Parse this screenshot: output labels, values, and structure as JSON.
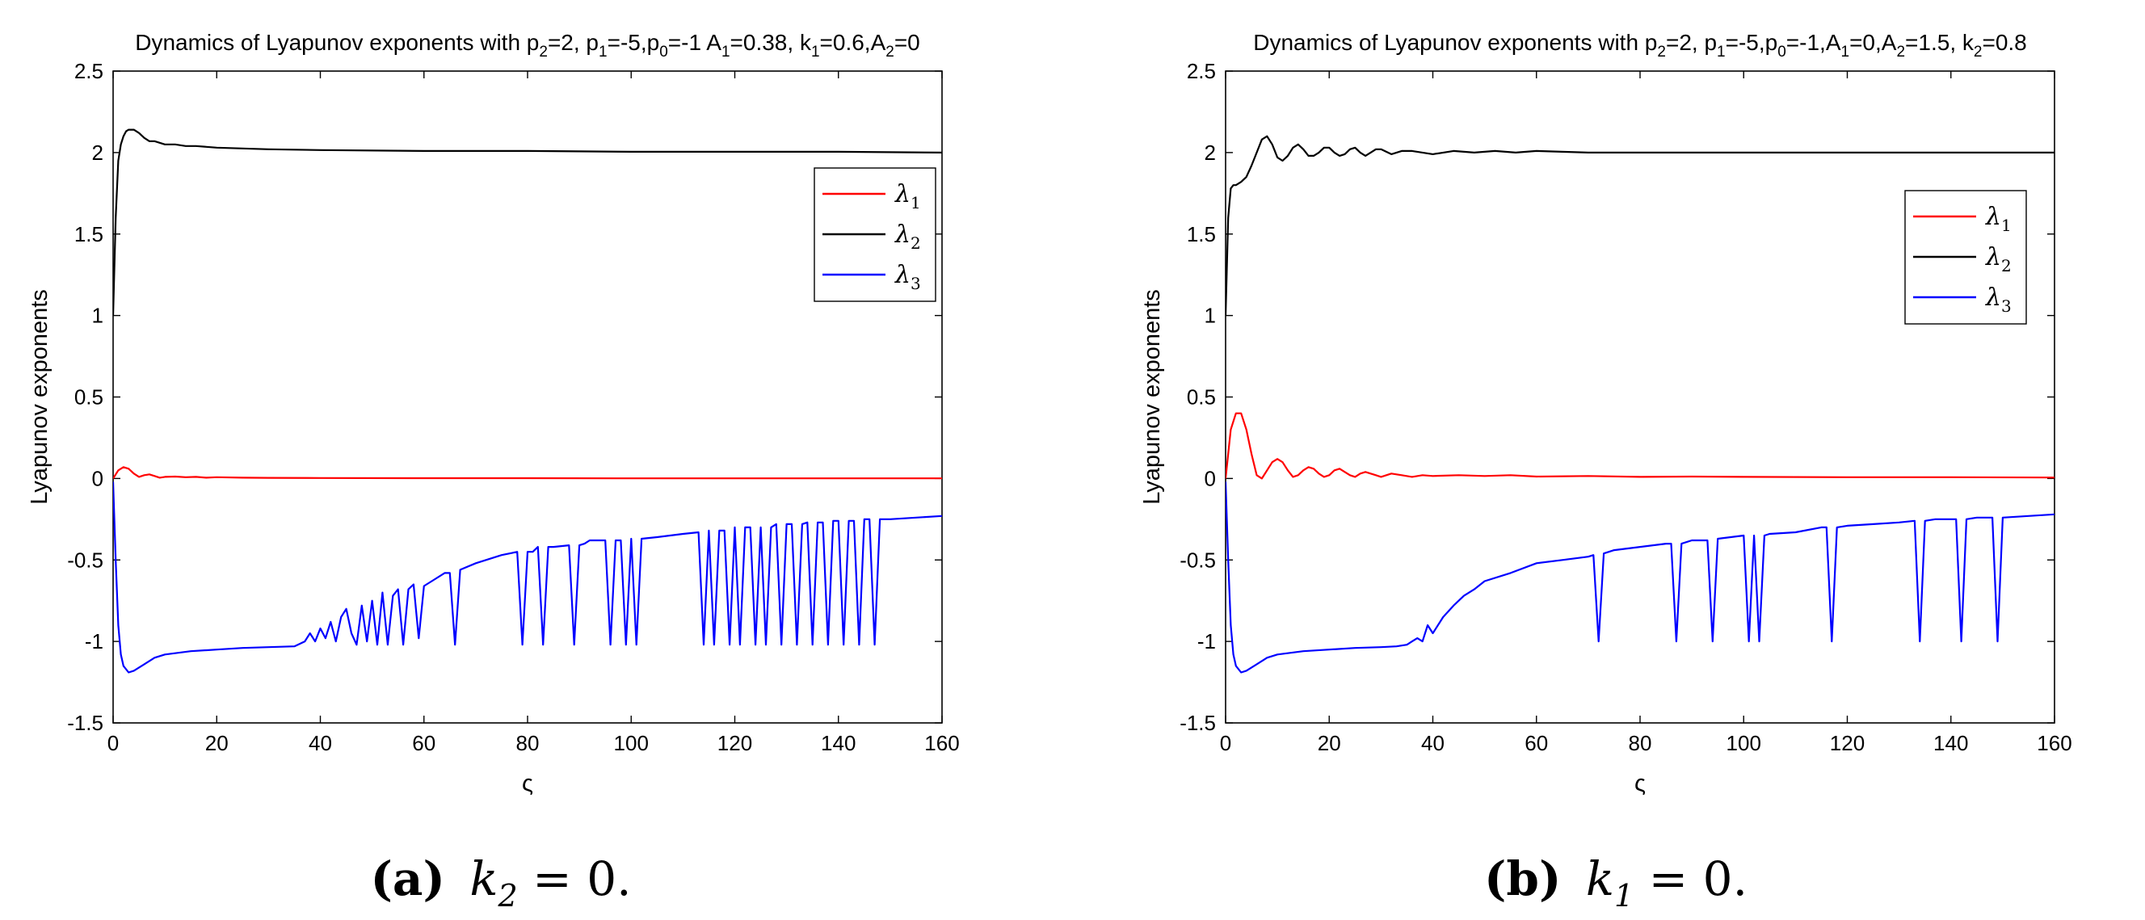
{
  "figure": {
    "captions": [
      {
        "label": "(a)",
        "math_var": "k",
        "math_sub": "2",
        "math_rest": " = 0."
      },
      {
        "label": "(b)",
        "math_var": "k",
        "math_sub": "1",
        "math_rest": " = 0."
      }
    ]
  },
  "chart_data": [
    {
      "type": "line",
      "title_parts": [
        {
          "t": "Dynamics of Lyapunov exponents with p"
        },
        {
          "t": "2",
          "sub": true
        },
        {
          "t": "=2, p"
        },
        {
          "t": "1",
          "sub": true
        },
        {
          "t": "=-5,p"
        },
        {
          "t": "0",
          "sub": true
        },
        {
          "t": "=-1 A"
        },
        {
          "t": "1",
          "sub": true
        },
        {
          "t": "=0.38, k"
        },
        {
          "t": "1",
          "sub": true
        },
        {
          "t": "=0.6,A"
        },
        {
          "t": "2",
          "sub": true
        },
        {
          "t": "=0"
        }
      ],
      "xlabel": "ς",
      "ylabel": "Lyapunov exponents",
      "xlim": [
        0,
        160
      ],
      "ylim": [
        -1.5,
        2.5
      ],
      "xticks": [
        "0",
        "20",
        "40",
        "60",
        "80",
        "100",
        "120",
        "140",
        "160"
      ],
      "yticks": [
        "-1.5",
        "-1",
        "-0.5",
        "0",
        "0.5",
        "1",
        "1.5",
        "2",
        "2.5"
      ],
      "legend_position": "upper-right",
      "series": [
        {
          "name": "λ1",
          "base": "λ",
          "sub": "1",
          "color": "#ff0000",
          "x": [
            0,
            1,
            2,
            3,
            4,
            5,
            6,
            7,
            8,
            9,
            10,
            12,
            14,
            16,
            18,
            20,
            25,
            30,
            40,
            60,
            80,
            100,
            120,
            140,
            160
          ],
          "y": [
            0,
            0.05,
            0.07,
            0.06,
            0.03,
            0.01,
            0.02,
            0.025,
            0.015,
            0.005,
            0.01,
            0.012,
            0.008,
            0.01,
            0.005,
            0.008,
            0.005,
            0.004,
            0.003,
            0.002,
            0.002,
            0.001,
            0.001,
            0.001,
            0.001
          ]
        },
        {
          "name": "λ2",
          "base": "λ",
          "sub": "2",
          "color": "#000000",
          "x": [
            0,
            0.5,
            1,
            1.5,
            2,
            2.5,
            3,
            4,
            5,
            6,
            7,
            8,
            9,
            10,
            12,
            14,
            16,
            18,
            20,
            25,
            30,
            40,
            60,
            80,
            100,
            120,
            140,
            160
          ],
          "y": [
            1.0,
            1.6,
            1.95,
            2.05,
            2.1,
            2.13,
            2.14,
            2.14,
            2.12,
            2.09,
            2.07,
            2.07,
            2.06,
            2.05,
            2.05,
            2.04,
            2.04,
            2.035,
            2.03,
            2.025,
            2.02,
            2.015,
            2.01,
            2.01,
            2.005,
            2.005,
            2.005,
            2.0
          ]
        },
        {
          "name": "λ3",
          "base": "λ",
          "sub": "3",
          "color": "#0000ff",
          "x": [
            0,
            0.5,
            1,
            1.5,
            2,
            3,
            4,
            6,
            8,
            10,
            15,
            20,
            25,
            30,
            35,
            37,
            38,
            39,
            40,
            41,
            42,
            43,
            44,
            45,
            46,
            47,
            48,
            49,
            50,
            51,
            52,
            53,
            54,
            55,
            56,
            57,
            58,
            59,
            60,
            62,
            64,
            65,
            66,
            67,
            70,
            75,
            78,
            79,
            80,
            81,
            82,
            83,
            84,
            85,
            88,
            89,
            90,
            91,
            92,
            95,
            96,
            97,
            98,
            99,
            100,
            101,
            102,
            105,
            110,
            113,
            114,
            115,
            116,
            117,
            118,
            119,
            120,
            121,
            122,
            123,
            124,
            125,
            126,
            127,
            128,
            129,
            130,
            131,
            132,
            133,
            134,
            135,
            136,
            137,
            138,
            139,
            140,
            141,
            142,
            143,
            144,
            145,
            146,
            147,
            148,
            149,
            150,
            155,
            160
          ],
          "y": [
            -0.02,
            -0.5,
            -0.9,
            -1.08,
            -1.15,
            -1.19,
            -1.18,
            -1.14,
            -1.1,
            -1.08,
            -1.06,
            -1.05,
            -1.04,
            -1.035,
            -1.03,
            -1.0,
            -0.95,
            -1.0,
            -0.92,
            -0.98,
            -0.88,
            -1.0,
            -0.85,
            -0.8,
            -0.95,
            -1.02,
            -0.78,
            -1.0,
            -0.75,
            -1.02,
            -0.7,
            -1.02,
            -0.72,
            -0.68,
            -1.02,
            -0.68,
            -0.65,
            -0.98,
            -0.66,
            -0.62,
            -0.58,
            -0.58,
            -1.02,
            -0.56,
            -0.52,
            -0.47,
            -0.45,
            -1.02,
            -0.45,
            -0.45,
            -0.42,
            -1.02,
            -0.42,
            -0.42,
            -0.41,
            -1.02,
            -0.41,
            -0.4,
            -0.38,
            -0.38,
            -1.02,
            -0.38,
            -0.38,
            -1.02,
            -0.37,
            -1.02,
            -0.37,
            -0.36,
            -0.34,
            -0.33,
            -1.02,
            -0.32,
            -1.02,
            -0.32,
            -0.32,
            -1.02,
            -0.3,
            -1.02,
            -0.3,
            -0.3,
            -1.02,
            -0.3,
            -1.02,
            -0.3,
            -0.28,
            -1.02,
            -0.28,
            -0.28,
            -1.02,
            -0.28,
            -0.27,
            -1.02,
            -0.27,
            -0.27,
            -1.02,
            -0.26,
            -0.26,
            -1.02,
            -0.26,
            -0.26,
            -1.02,
            -0.25,
            -0.25,
            -1.02,
            -0.25,
            -0.25,
            -0.25,
            -0.24,
            -0.23
          ]
        }
      ]
    },
    {
      "type": "line",
      "title_parts": [
        {
          "t": "Dynamics of Lyapunov exponents with p"
        },
        {
          "t": "2",
          "sub": true
        },
        {
          "t": "=2, p"
        },
        {
          "t": "1",
          "sub": true
        },
        {
          "t": "=-5,p"
        },
        {
          "t": "0",
          "sub": true
        },
        {
          "t": "=-1,A"
        },
        {
          "t": "1",
          "sub": true
        },
        {
          "t": "=0,A"
        },
        {
          "t": "2",
          "sub": true
        },
        {
          "t": "=1.5, k"
        },
        {
          "t": "2",
          "sub": true
        },
        {
          "t": "=0.8"
        }
      ],
      "xlabel": "ς",
      "ylabel": "Lyapunov exponents",
      "xlim": [
        0,
        160
      ],
      "ylim": [
        -1.5,
        2.5
      ],
      "xticks": [
        "0",
        "20",
        "40",
        "60",
        "80",
        "100",
        "120",
        "140",
        "160"
      ],
      "yticks": [
        "-1.5",
        "-1",
        "-0.5",
        "0",
        "0.5",
        "1",
        "1.5",
        "2",
        "2.5"
      ],
      "legend_position": "upper-right",
      "series": [
        {
          "name": "λ1",
          "base": "λ",
          "sub": "1",
          "color": "#ff0000",
          "x": [
            0,
            1,
            2,
            3,
            4,
            5,
            6,
            7,
            8,
            9,
            10,
            11,
            12,
            13,
            14,
            15,
            16,
            17,
            18,
            19,
            20,
            21,
            22,
            23,
            24,
            25,
            26,
            27,
            28,
            29,
            30,
            32,
            34,
            36,
            38,
            40,
            45,
            50,
            55,
            60,
            70,
            80,
            90,
            100,
            120,
            140,
            160
          ],
          "y": [
            0,
            0.3,
            0.4,
            0.4,
            0.3,
            0.15,
            0.02,
            0.0,
            0.05,
            0.1,
            0.12,
            0.1,
            0.05,
            0.01,
            0.02,
            0.05,
            0.07,
            0.06,
            0.03,
            0.01,
            0.02,
            0.05,
            0.06,
            0.04,
            0.02,
            0.01,
            0.03,
            0.04,
            0.03,
            0.02,
            0.01,
            0.03,
            0.02,
            0.01,
            0.02,
            0.015,
            0.02,
            0.015,
            0.02,
            0.012,
            0.015,
            0.01,
            0.012,
            0.01,
            0.008,
            0.008,
            0.006
          ]
        },
        {
          "name": "λ2",
          "base": "λ",
          "sub": "2",
          "color": "#000000",
          "x": [
            0,
            0.5,
            1,
            1.5,
            2,
            3,
            4,
            5,
            6,
            7,
            8,
            9,
            10,
            11,
            12,
            13,
            14,
            15,
            16,
            17,
            18,
            19,
            20,
            21,
            22,
            23,
            24,
            25,
            26,
            27,
            28,
            29,
            30,
            32,
            34,
            36,
            38,
            40,
            44,
            48,
            52,
            56,
            60,
            70,
            80,
            100,
            120,
            140,
            160
          ],
          "y": [
            1.0,
            1.6,
            1.78,
            1.8,
            1.8,
            1.82,
            1.85,
            1.92,
            2.0,
            2.08,
            2.1,
            2.05,
            1.97,
            1.95,
            1.98,
            2.03,
            2.05,
            2.02,
            1.98,
            1.98,
            2.0,
            2.03,
            2.03,
            2.0,
            1.98,
            1.99,
            2.02,
            2.03,
            2.0,
            1.98,
            2.0,
            2.02,
            2.02,
            1.99,
            2.01,
            2.01,
            2.0,
            1.99,
            2.01,
            2.0,
            2.01,
            2.0,
            2.01,
            2.0,
            2.0,
            2.0,
            2.0,
            2.0,
            2.0
          ]
        },
        {
          "name": "λ3",
          "base": "λ",
          "sub": "3",
          "color": "#0000ff",
          "x": [
            0,
            0.5,
            1,
            1.5,
            2,
            3,
            4,
            6,
            8,
            10,
            15,
            20,
            25,
            30,
            33,
            35,
            36,
            37,
            38,
            39,
            40,
            42,
            44,
            46,
            48,
            50,
            55,
            60,
            65,
            70,
            71,
            72,
            73,
            75,
            80,
            85,
            86,
            87,
            88,
            90,
            93,
            94,
            95,
            100,
            101,
            102,
            103,
            104,
            105,
            110,
            115,
            116,
            117,
            118,
            120,
            125,
            130,
            133,
            134,
            135,
            137,
            140,
            141,
            142,
            143,
            145,
            148,
            149,
            150,
            155,
            160
          ],
          "y": [
            -0.02,
            -0.5,
            -0.9,
            -1.08,
            -1.15,
            -1.19,
            -1.18,
            -1.14,
            -1.1,
            -1.08,
            -1.06,
            -1.05,
            -1.04,
            -1.035,
            -1.03,
            -1.02,
            -1.0,
            -0.98,
            -1.0,
            -0.9,
            -0.95,
            -0.85,
            -0.78,
            -0.72,
            -0.68,
            -0.63,
            -0.58,
            -0.52,
            -0.5,
            -0.48,
            -0.47,
            -1.0,
            -0.46,
            -0.44,
            -0.42,
            -0.4,
            -0.4,
            -1.0,
            -0.4,
            -0.38,
            -0.38,
            -1.0,
            -0.37,
            -0.35,
            -1.0,
            -0.35,
            -1.0,
            -0.35,
            -0.34,
            -0.33,
            -0.3,
            -0.3,
            -1.0,
            -0.3,
            -0.29,
            -0.28,
            -0.27,
            -0.26,
            -1.0,
            -0.26,
            -0.25,
            -0.25,
            -0.25,
            -1.0,
            -0.25,
            -0.24,
            -0.24,
            -1.0,
            -0.24,
            -0.23,
            -0.22
          ]
        }
      ]
    }
  ]
}
